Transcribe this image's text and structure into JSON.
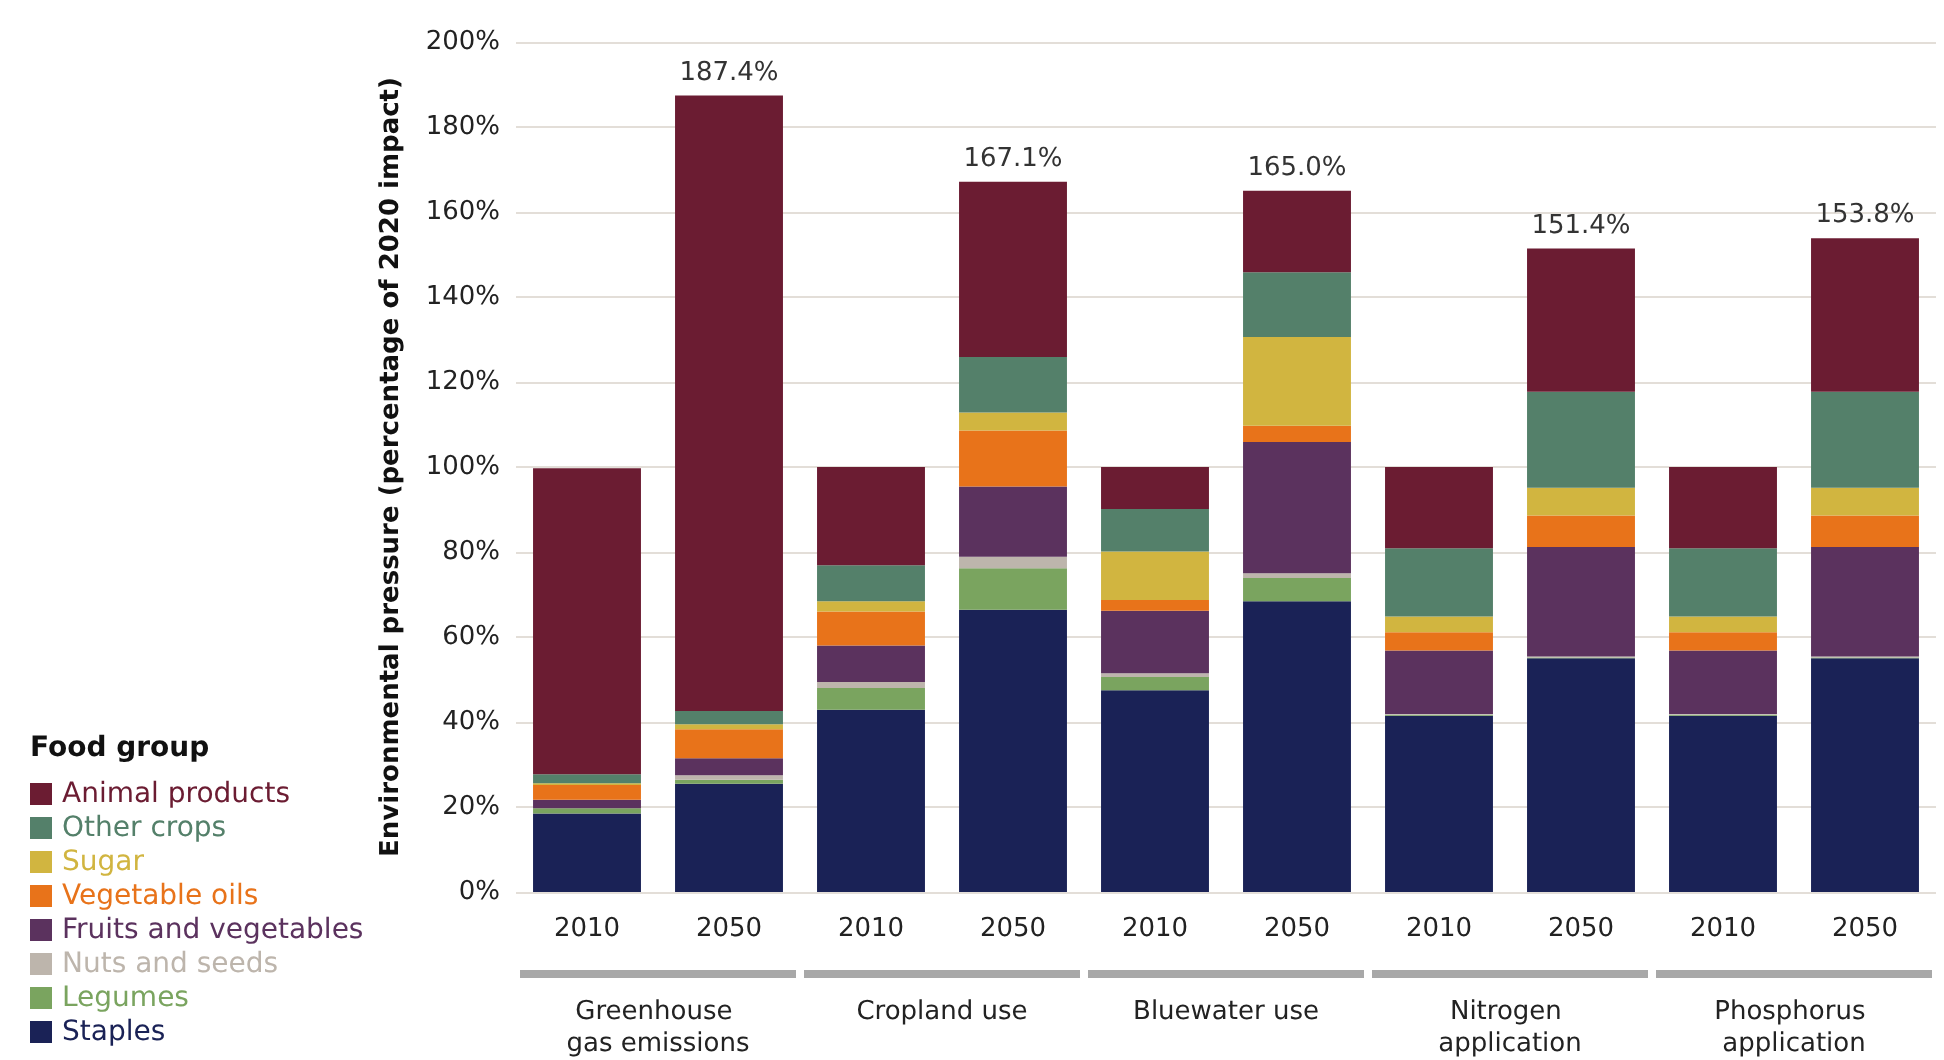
{
  "chart_data": {
    "type": "bar",
    "stacked": true,
    "ylabel": "Environmental pressure (percentage of 2020 impact)",
    "legend_title": "Food group",
    "legend": "bottom left",
    "grid": "y",
    "categories": [
      "2010",
      "2050",
      "2010",
      "2050",
      "2010",
      "2050",
      "2010",
      "2050",
      "2010",
      "2050"
    ],
    "annotations": [
      "Greenhouse gas emissions",
      "Cropland use",
      "Bluewater use",
      "Nitrogen application",
      "Phosphorus application"
    ],
    "ylim": [
      0,
      200
    ],
    "yticks": [
      {
        "value": 0,
        "label": "0%"
      },
      {
        "value": 20,
        "label": "20%"
      },
      {
        "value": 40,
        "label": "40%"
      },
      {
        "value": 60,
        "label": "60%"
      },
      {
        "value": 80,
        "label": "80%"
      },
      {
        "value": 100,
        "label": "100%"
      },
      {
        "value": 120,
        "label": "120%"
      },
      {
        "value": 140,
        "label": "140%"
      },
      {
        "value": 160,
        "label": "160%"
      },
      {
        "value": 180,
        "label": "180%"
      },
      {
        "value": 200,
        "label": "200%"
      }
    ],
    "totals": [
      null,
      "187.4%",
      null,
      "167.1%",
      null,
      "165.0%",
      null,
      "151.4%",
      null,
      "153.8%"
    ],
    "series": [
      {
        "name": "Staples",
        "color": "#1a2256",
        "values": [
          18.5,
          25.5,
          42.9,
          66.4,
          47.5,
          68.4,
          41.5,
          55,
          41.5,
          55
        ]
      },
      {
        "name": "Legumes",
        "color": "#7aa45f",
        "values": [
          1.2,
          0.9,
          5.1,
          9.8,
          3.1,
          5.5,
          0.2,
          0.2,
          0.2,
          0.2
        ]
      },
      {
        "name": "Nuts and seeds",
        "color": "#bdb5ac",
        "values": [
          null,
          1.1,
          1.4,
          2.7,
          0.9,
          1.1,
          0.2,
          0.2,
          0.2,
          0.2
        ]
      },
      {
        "name": "Fruits and vegetables",
        "color": "#5b325e",
        "values": [
          2,
          4,
          8.6,
          16.5,
          14.7,
          30.9,
          14.9,
          25.8,
          14.9,
          25.8
        ]
      },
      {
        "name": "Vegetable oils",
        "color": "#e8731a",
        "values": [
          3.5,
          6.8,
          8,
          13.2,
          2.5,
          3.8,
          4.3,
          7.4,
          4.3,
          7.4
        ]
      },
      {
        "name": "Sugar",
        "color": "#d1b540",
        "values": [
          0.4,
          1.2,
          2.4,
          4.2,
          11.4,
          20.9,
          3.7,
          6.5,
          3.7,
          6.5
        ]
      },
      {
        "name": "Other crops",
        "color": "#54806a",
        "values": [
          2.1,
          3.1,
          8.5,
          13.1,
          10,
          15.2,
          16.1,
          22.6,
          16.1,
          22.6
        ]
      },
      {
        "name": "Animal products",
        "color": "#6b1c32",
        "values": [
          72,
          144.8,
          23.1,
          41.2,
          9.9,
          19.2,
          19.1,
          33.7,
          19.1,
          36.1
        ]
      }
    ]
  }
}
